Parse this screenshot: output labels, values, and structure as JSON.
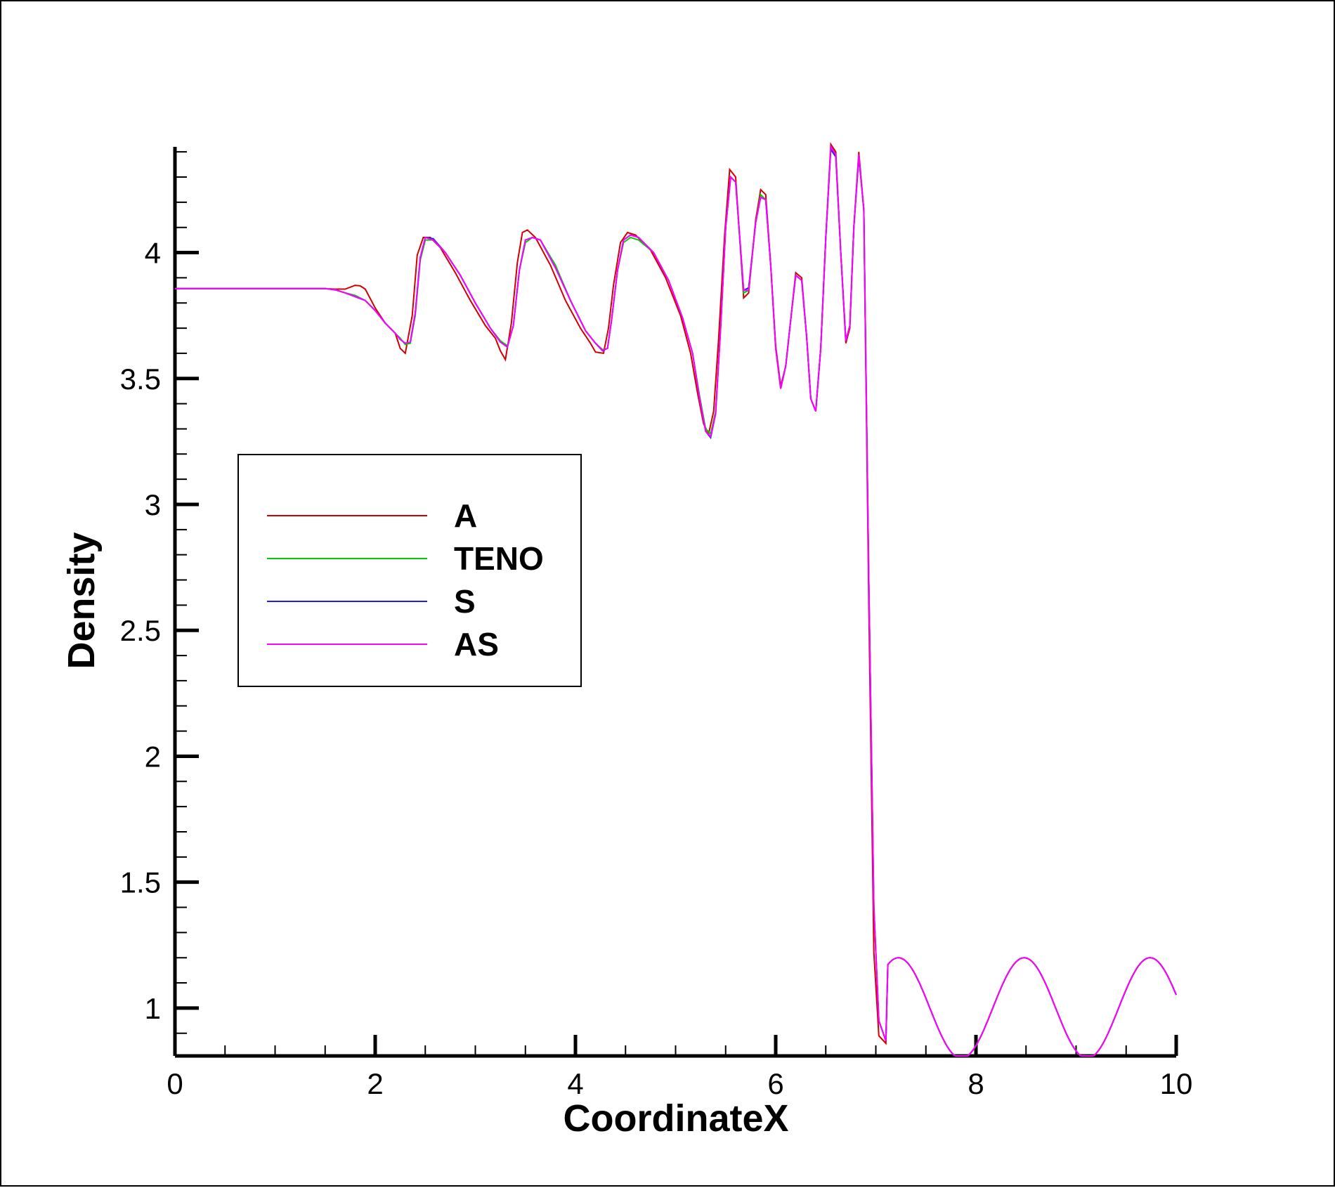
{
  "chart_data": {
    "type": "line",
    "title": "",
    "xlabel": "CoordinateX",
    "ylabel": "Density",
    "xlim": [
      0,
      10
    ],
    "ylim": [
      0.81,
      4.42
    ],
    "x_ticks": [
      "0",
      "2",
      "4",
      "6",
      "8",
      "10"
    ],
    "y_ticks": [
      "1",
      "1.5",
      "2",
      "2.5",
      "3",
      "3.5",
      "4"
    ],
    "grid": false,
    "legend_position": "left-middle",
    "series": [
      {
        "name": "A",
        "color": "#d40000",
        "points": [
          [
            0,
            3.857
          ],
          [
            1.5,
            3.857
          ],
          [
            1.6,
            3.855
          ],
          [
            1.7,
            3.855
          ],
          [
            1.8,
            3.87
          ],
          [
            1.85,
            3.868
          ],
          [
            1.9,
            3.855
          ],
          [
            2.0,
            3.78
          ],
          [
            2.1,
            3.72
          ],
          [
            2.2,
            3.68
          ],
          [
            2.25,
            3.62
          ],
          [
            2.3,
            3.6
          ],
          [
            2.37,
            3.75
          ],
          [
            2.42,
            3.99
          ],
          [
            2.48,
            4.06
          ],
          [
            2.55,
            4.06
          ],
          [
            2.65,
            4.02
          ],
          [
            2.8,
            3.92
          ],
          [
            2.95,
            3.81
          ],
          [
            3.1,
            3.71
          ],
          [
            3.2,
            3.66
          ],
          [
            3.25,
            3.61
          ],
          [
            3.3,
            3.575
          ],
          [
            3.36,
            3.72
          ],
          [
            3.42,
            3.96
          ],
          [
            3.47,
            4.08
          ],
          [
            3.52,
            4.09
          ],
          [
            3.6,
            4.06
          ],
          [
            3.75,
            3.95
          ],
          [
            3.9,
            3.81
          ],
          [
            4.05,
            3.7
          ],
          [
            4.15,
            3.64
          ],
          [
            4.2,
            3.605
          ],
          [
            4.28,
            3.6
          ],
          [
            4.33,
            3.7
          ],
          [
            4.38,
            3.87
          ],
          [
            4.45,
            4.04
          ],
          [
            4.52,
            4.08
          ],
          [
            4.6,
            4.07
          ],
          [
            4.75,
            4.01
          ],
          [
            4.9,
            3.9
          ],
          [
            5.05,
            3.75
          ],
          [
            5.15,
            3.6
          ],
          [
            5.22,
            3.44
          ],
          [
            5.28,
            3.32
          ],
          [
            5.33,
            3.28
          ],
          [
            5.38,
            3.37
          ],
          [
            5.43,
            3.66
          ],
          [
            5.49,
            4.07
          ],
          [
            5.54,
            4.33
          ],
          [
            5.6,
            4.3
          ],
          [
            5.68,
            3.82
          ],
          [
            5.73,
            3.84
          ],
          [
            5.8,
            4.13
          ],
          [
            5.85,
            4.25
          ],
          [
            5.9,
            4.23
          ],
          [
            5.95,
            3.95
          ],
          [
            6.0,
            3.63
          ],
          [
            6.05,
            3.47
          ],
          [
            6.1,
            3.55
          ],
          [
            6.16,
            3.77
          ],
          [
            6.2,
            3.92
          ],
          [
            6.26,
            3.9
          ],
          [
            6.31,
            3.66
          ],
          [
            6.35,
            3.42
          ],
          [
            6.4,
            3.37
          ],
          [
            6.45,
            3.62
          ],
          [
            6.5,
            4.06
          ],
          [
            6.55,
            4.43
          ],
          [
            6.6,
            4.4
          ],
          [
            6.65,
            4.0
          ],
          [
            6.7,
            3.64
          ],
          [
            6.74,
            3.7
          ],
          [
            6.78,
            4.1
          ],
          [
            6.83,
            4.4
          ],
          [
            6.88,
            4.17
          ],
          [
            6.93,
            2.6
          ],
          [
            6.98,
            1.22
          ],
          [
            7.03,
            0.89
          ],
          [
            7.1,
            0.86
          ]
        ]
      },
      {
        "name": "TENO",
        "color": "#00cc00",
        "points": [
          [
            0,
            3.857
          ],
          [
            1.5,
            3.857
          ],
          [
            1.6,
            3.853
          ],
          [
            1.7,
            3.84
          ],
          [
            1.8,
            3.83
          ],
          [
            1.9,
            3.81
          ],
          [
            2.0,
            3.77
          ],
          [
            2.1,
            3.72
          ],
          [
            2.2,
            3.68
          ],
          [
            2.25,
            3.66
          ],
          [
            2.3,
            3.635
          ],
          [
            2.35,
            3.64
          ],
          [
            2.4,
            3.75
          ],
          [
            2.45,
            3.97
          ],
          [
            2.5,
            4.05
          ],
          [
            2.58,
            4.05
          ],
          [
            2.7,
            4.0
          ],
          [
            2.85,
            3.91
          ],
          [
            3.0,
            3.8
          ],
          [
            3.15,
            3.7
          ],
          [
            3.25,
            3.65
          ],
          [
            3.32,
            3.63
          ],
          [
            3.38,
            3.71
          ],
          [
            3.44,
            3.93
          ],
          [
            3.5,
            4.04
          ],
          [
            3.57,
            4.06
          ],
          [
            3.65,
            4.05
          ],
          [
            3.8,
            3.95
          ],
          [
            3.95,
            3.81
          ],
          [
            4.1,
            3.69
          ],
          [
            4.2,
            3.64
          ],
          [
            4.27,
            3.615
          ],
          [
            4.32,
            3.62
          ],
          [
            4.36,
            3.73
          ],
          [
            4.42,
            3.93
          ],
          [
            4.48,
            4.04
          ],
          [
            4.55,
            4.06
          ],
          [
            4.63,
            4.05
          ],
          [
            4.78,
            4.0
          ],
          [
            4.93,
            3.89
          ],
          [
            5.07,
            3.74
          ],
          [
            5.17,
            3.6
          ],
          [
            5.24,
            3.43
          ],
          [
            5.3,
            3.3
          ],
          [
            5.35,
            3.28
          ],
          [
            5.4,
            3.37
          ],
          [
            5.45,
            3.7
          ],
          [
            5.5,
            4.1
          ],
          [
            5.55,
            4.3
          ],
          [
            5.6,
            4.28
          ],
          [
            5.68,
            3.84
          ],
          [
            5.73,
            3.85
          ],
          [
            5.8,
            4.12
          ],
          [
            5.85,
            4.23
          ],
          [
            5.9,
            4.21
          ],
          [
            5.95,
            3.95
          ],
          [
            6.0,
            3.62
          ],
          [
            6.05,
            3.46
          ],
          [
            6.1,
            3.55
          ],
          [
            6.16,
            3.77
          ],
          [
            6.2,
            3.91
          ],
          [
            6.26,
            3.89
          ],
          [
            6.31,
            3.66
          ],
          [
            6.35,
            3.42
          ],
          [
            6.4,
            3.37
          ],
          [
            6.45,
            3.62
          ],
          [
            6.5,
            4.06
          ],
          [
            6.55,
            4.42
          ],
          [
            6.6,
            4.39
          ],
          [
            6.65,
            4.0
          ],
          [
            6.7,
            3.65
          ],
          [
            6.74,
            3.71
          ],
          [
            6.78,
            4.1
          ],
          [
            6.83,
            4.39
          ],
          [
            6.88,
            4.17
          ],
          [
            6.93,
            2.7
          ],
          [
            6.98,
            1.4
          ],
          [
            7.03,
            0.95
          ],
          [
            7.1,
            0.87
          ]
        ]
      },
      {
        "name": "S",
        "color": "#2020ee",
        "points": [
          [
            0,
            3.857
          ],
          [
            1.5,
            3.857
          ],
          [
            1.6,
            3.852
          ],
          [
            1.7,
            3.84
          ],
          [
            1.8,
            3.825
          ],
          [
            1.9,
            3.81
          ],
          [
            2.0,
            3.77
          ],
          [
            2.1,
            3.72
          ],
          [
            2.2,
            3.68
          ],
          [
            2.25,
            3.655
          ],
          [
            2.3,
            3.64
          ],
          [
            2.35,
            3.645
          ],
          [
            2.4,
            3.76
          ],
          [
            2.45,
            3.98
          ],
          [
            2.5,
            4.06
          ],
          [
            2.58,
            4.055
          ],
          [
            2.7,
            4.0
          ],
          [
            2.85,
            3.91
          ],
          [
            3.0,
            3.8
          ],
          [
            3.15,
            3.7
          ],
          [
            3.25,
            3.645
          ],
          [
            3.32,
            3.625
          ],
          [
            3.38,
            3.71
          ],
          [
            3.44,
            3.93
          ],
          [
            3.5,
            4.05
          ],
          [
            3.57,
            4.06
          ],
          [
            3.65,
            4.05
          ],
          [
            3.8,
            3.94
          ],
          [
            3.95,
            3.81
          ],
          [
            4.1,
            3.69
          ],
          [
            4.2,
            3.64
          ],
          [
            4.27,
            3.61
          ],
          [
            4.32,
            3.62
          ],
          [
            4.36,
            3.73
          ],
          [
            4.42,
            3.93
          ],
          [
            4.48,
            4.05
          ],
          [
            4.55,
            4.07
          ],
          [
            4.63,
            4.06
          ],
          [
            4.78,
            4.0
          ],
          [
            4.93,
            3.89
          ],
          [
            5.07,
            3.74
          ],
          [
            5.17,
            3.6
          ],
          [
            5.24,
            3.42
          ],
          [
            5.3,
            3.29
          ],
          [
            5.35,
            3.265
          ],
          [
            5.4,
            3.36
          ],
          [
            5.45,
            3.7
          ],
          [
            5.5,
            4.1
          ],
          [
            5.55,
            4.3
          ],
          [
            5.6,
            4.28
          ],
          [
            5.68,
            3.85
          ],
          [
            5.73,
            3.86
          ],
          [
            5.8,
            4.12
          ],
          [
            5.85,
            4.22
          ],
          [
            5.9,
            4.21
          ],
          [
            5.95,
            3.95
          ],
          [
            6.0,
            3.62
          ],
          [
            6.05,
            3.46
          ],
          [
            6.1,
            3.55
          ],
          [
            6.16,
            3.77
          ],
          [
            6.2,
            3.91
          ],
          [
            6.26,
            3.89
          ],
          [
            6.31,
            3.66
          ],
          [
            6.35,
            3.42
          ],
          [
            6.4,
            3.37
          ],
          [
            6.45,
            3.62
          ],
          [
            6.5,
            4.06
          ],
          [
            6.55,
            4.41
          ],
          [
            6.6,
            4.38
          ],
          [
            6.65,
            4.0
          ],
          [
            6.7,
            3.65
          ],
          [
            6.74,
            3.71
          ],
          [
            6.78,
            4.1
          ],
          [
            6.83,
            4.38
          ],
          [
            6.88,
            4.17
          ],
          [
            6.93,
            2.7
          ],
          [
            6.98,
            1.4
          ],
          [
            7.03,
            0.95
          ],
          [
            7.1,
            0.87
          ]
        ]
      },
      {
        "name": "AS",
        "color": "#ff00ff",
        "points": [
          [
            0,
            3.857
          ],
          [
            1.5,
            3.857
          ],
          [
            1.6,
            3.853
          ],
          [
            1.7,
            3.84
          ],
          [
            1.8,
            3.826
          ],
          [
            1.9,
            3.81
          ],
          [
            2.0,
            3.77
          ],
          [
            2.1,
            3.72
          ],
          [
            2.2,
            3.68
          ],
          [
            2.25,
            3.655
          ],
          [
            2.3,
            3.64
          ],
          [
            2.35,
            3.645
          ],
          [
            2.4,
            3.76
          ],
          [
            2.45,
            3.98
          ],
          [
            2.5,
            4.06
          ],
          [
            2.58,
            4.05
          ],
          [
            2.7,
            4.0
          ],
          [
            2.85,
            3.91
          ],
          [
            3.0,
            3.8
          ],
          [
            3.15,
            3.7
          ],
          [
            3.25,
            3.645
          ],
          [
            3.32,
            3.625
          ],
          [
            3.38,
            3.71
          ],
          [
            3.44,
            3.93
          ],
          [
            3.5,
            4.05
          ],
          [
            3.57,
            4.06
          ],
          [
            3.65,
            4.05
          ],
          [
            3.8,
            3.94
          ],
          [
            3.95,
            3.81
          ],
          [
            4.1,
            3.69
          ],
          [
            4.2,
            3.64
          ],
          [
            4.27,
            3.612
          ],
          [
            4.32,
            3.62
          ],
          [
            4.36,
            3.73
          ],
          [
            4.42,
            3.93
          ],
          [
            4.48,
            4.05
          ],
          [
            4.55,
            4.07
          ],
          [
            4.63,
            4.06
          ],
          [
            4.78,
            4.0
          ],
          [
            4.93,
            3.89
          ],
          [
            5.07,
            3.74
          ],
          [
            5.17,
            3.6
          ],
          [
            5.24,
            3.42
          ],
          [
            5.3,
            3.29
          ],
          [
            5.35,
            3.27
          ],
          [
            5.4,
            3.36
          ],
          [
            5.45,
            3.7
          ],
          [
            5.5,
            4.1
          ],
          [
            5.55,
            4.3
          ],
          [
            5.6,
            4.28
          ],
          [
            5.68,
            3.85
          ],
          [
            5.73,
            3.85
          ],
          [
            5.8,
            4.12
          ],
          [
            5.85,
            4.22
          ],
          [
            5.9,
            4.21
          ],
          [
            5.95,
            3.95
          ],
          [
            6.0,
            3.62
          ],
          [
            6.05,
            3.46
          ],
          [
            6.1,
            3.55
          ],
          [
            6.16,
            3.77
          ],
          [
            6.2,
            3.91
          ],
          [
            6.26,
            3.89
          ],
          [
            6.31,
            3.66
          ],
          [
            6.35,
            3.42
          ],
          [
            6.4,
            3.37
          ],
          [
            6.45,
            3.62
          ],
          [
            6.5,
            4.06
          ],
          [
            6.55,
            4.42
          ],
          [
            6.6,
            4.39
          ],
          [
            6.65,
            4.0
          ],
          [
            6.7,
            3.65
          ],
          [
            6.74,
            3.71
          ],
          [
            6.78,
            4.1
          ],
          [
            6.83,
            4.39
          ],
          [
            6.88,
            4.17
          ],
          [
            6.93,
            2.7
          ],
          [
            6.98,
            1.4
          ],
          [
            7.03,
            0.95
          ],
          [
            7.1,
            0.87
          ]
        ]
      }
    ],
    "shared_tail": {
      "x_start": 7.1,
      "x_end": 10.0,
      "description_formula": "1 - 0.2*sin(5*x)",
      "step": 0.02
    }
  }
}
